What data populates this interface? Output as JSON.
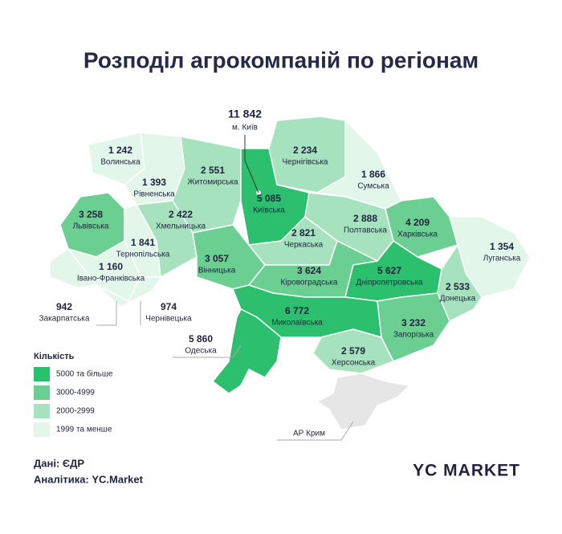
{
  "title": "Розподіл агрокомпаній по регіонам",
  "regions": [
    {
      "name": "Волинська",
      "value": 1242,
      "value_label": "1 242",
      "color": "#e3f6ea"
    },
    {
      "name": "Рівненська",
      "value": 1393,
      "value_label": "1 393",
      "color": "#e3f6ea"
    },
    {
      "name": "Житомирська",
      "value": 2551,
      "value_label": "2 551",
      "color": "#a6e2bd"
    },
    {
      "name": "Київська",
      "value": 5085,
      "value_label": "5 085",
      "color": "#2bbf6e"
    },
    {
      "name": "Чернігівська",
      "value": 2234,
      "value_label": "2 234",
      "color": "#a6e2bd"
    },
    {
      "name": "Сумська",
      "value": 1866,
      "value_label": "1 866",
      "color": "#e3f6ea"
    },
    {
      "name": "Львівська",
      "value": 3258,
      "value_label": "3 258",
      "color": "#6ccf92"
    },
    {
      "name": "Хмельницька",
      "value": 2422,
      "value_label": "2 422",
      "color": "#a6e2bd"
    },
    {
      "name": "Тернопільська",
      "value": 1841,
      "value_label": "1 841",
      "color": "#e3f6ea"
    },
    {
      "name": "Івано-Франківська",
      "value": 1160,
      "value_label": "1 160",
      "color": "#e3f6ea"
    },
    {
      "name": "Закарпатська",
      "value": 942,
      "value_label": "942",
      "color": "#e3f6ea"
    },
    {
      "name": "Чернівецька",
      "value": 974,
      "value_label": "974",
      "color": "#e3f6ea"
    },
    {
      "name": "Вінницька",
      "value": 3057,
      "value_label": "3 057",
      "color": "#6ccf92"
    },
    {
      "name": "Черкаська",
      "value": 2821,
      "value_label": "2 821",
      "color": "#a6e2bd"
    },
    {
      "name": "Полтавська",
      "value": 2888,
      "value_label": "2 888",
      "color": "#a6e2bd"
    },
    {
      "name": "Харківська",
      "value": 4209,
      "value_label": "4 209",
      "color": "#6ccf92"
    },
    {
      "name": "Луганська",
      "value": 1354,
      "value_label": "1 354",
      "color": "#e3f6ea"
    },
    {
      "name": "Кіровоградська",
      "value": 3624,
      "value_label": "3 624",
      "color": "#6ccf92"
    },
    {
      "name": "Дніпропетровська",
      "value": 5627,
      "value_label": "5 627",
      "color": "#2bbf6e"
    },
    {
      "name": "Донецька",
      "value": 2533,
      "value_label": "2 533",
      "color": "#a6e2bd"
    },
    {
      "name": "Запорізька",
      "value": 3232,
      "value_label": "3 232",
      "color": "#6ccf92"
    },
    {
      "name": "Миколаївська",
      "value": 6772,
      "value_label": "6 772",
      "color": "#2bbf6e"
    },
    {
      "name": "Херсонська",
      "value": 2579,
      "value_label": "2 579",
      "color": "#a6e2bd"
    },
    {
      "name": "Одеська",
      "value": 5860,
      "value_label": "5 860",
      "color": "#2bbf6e"
    }
  ],
  "kyiv_city": {
    "name": "м. Київ",
    "value": 11842,
    "value_label": "11 842"
  },
  "crimea": {
    "name": "АР Крим",
    "color": "#e6e6e6"
  },
  "legend": {
    "title": "Кількість",
    "items": [
      {
        "label": "5000 та більше",
        "color": "#2bbf6e"
      },
      {
        "label": "3000-4999",
        "color": "#6ccf92"
      },
      {
        "label": "2000-2999",
        "color": "#a6e2bd"
      },
      {
        "label": "1999 та менше",
        "color": "#e3f6ea"
      }
    ]
  },
  "footer": {
    "source": "Дані: ЄДР",
    "analytics": "Аналітика: YC.Market",
    "logo": "YC MARKET"
  }
}
